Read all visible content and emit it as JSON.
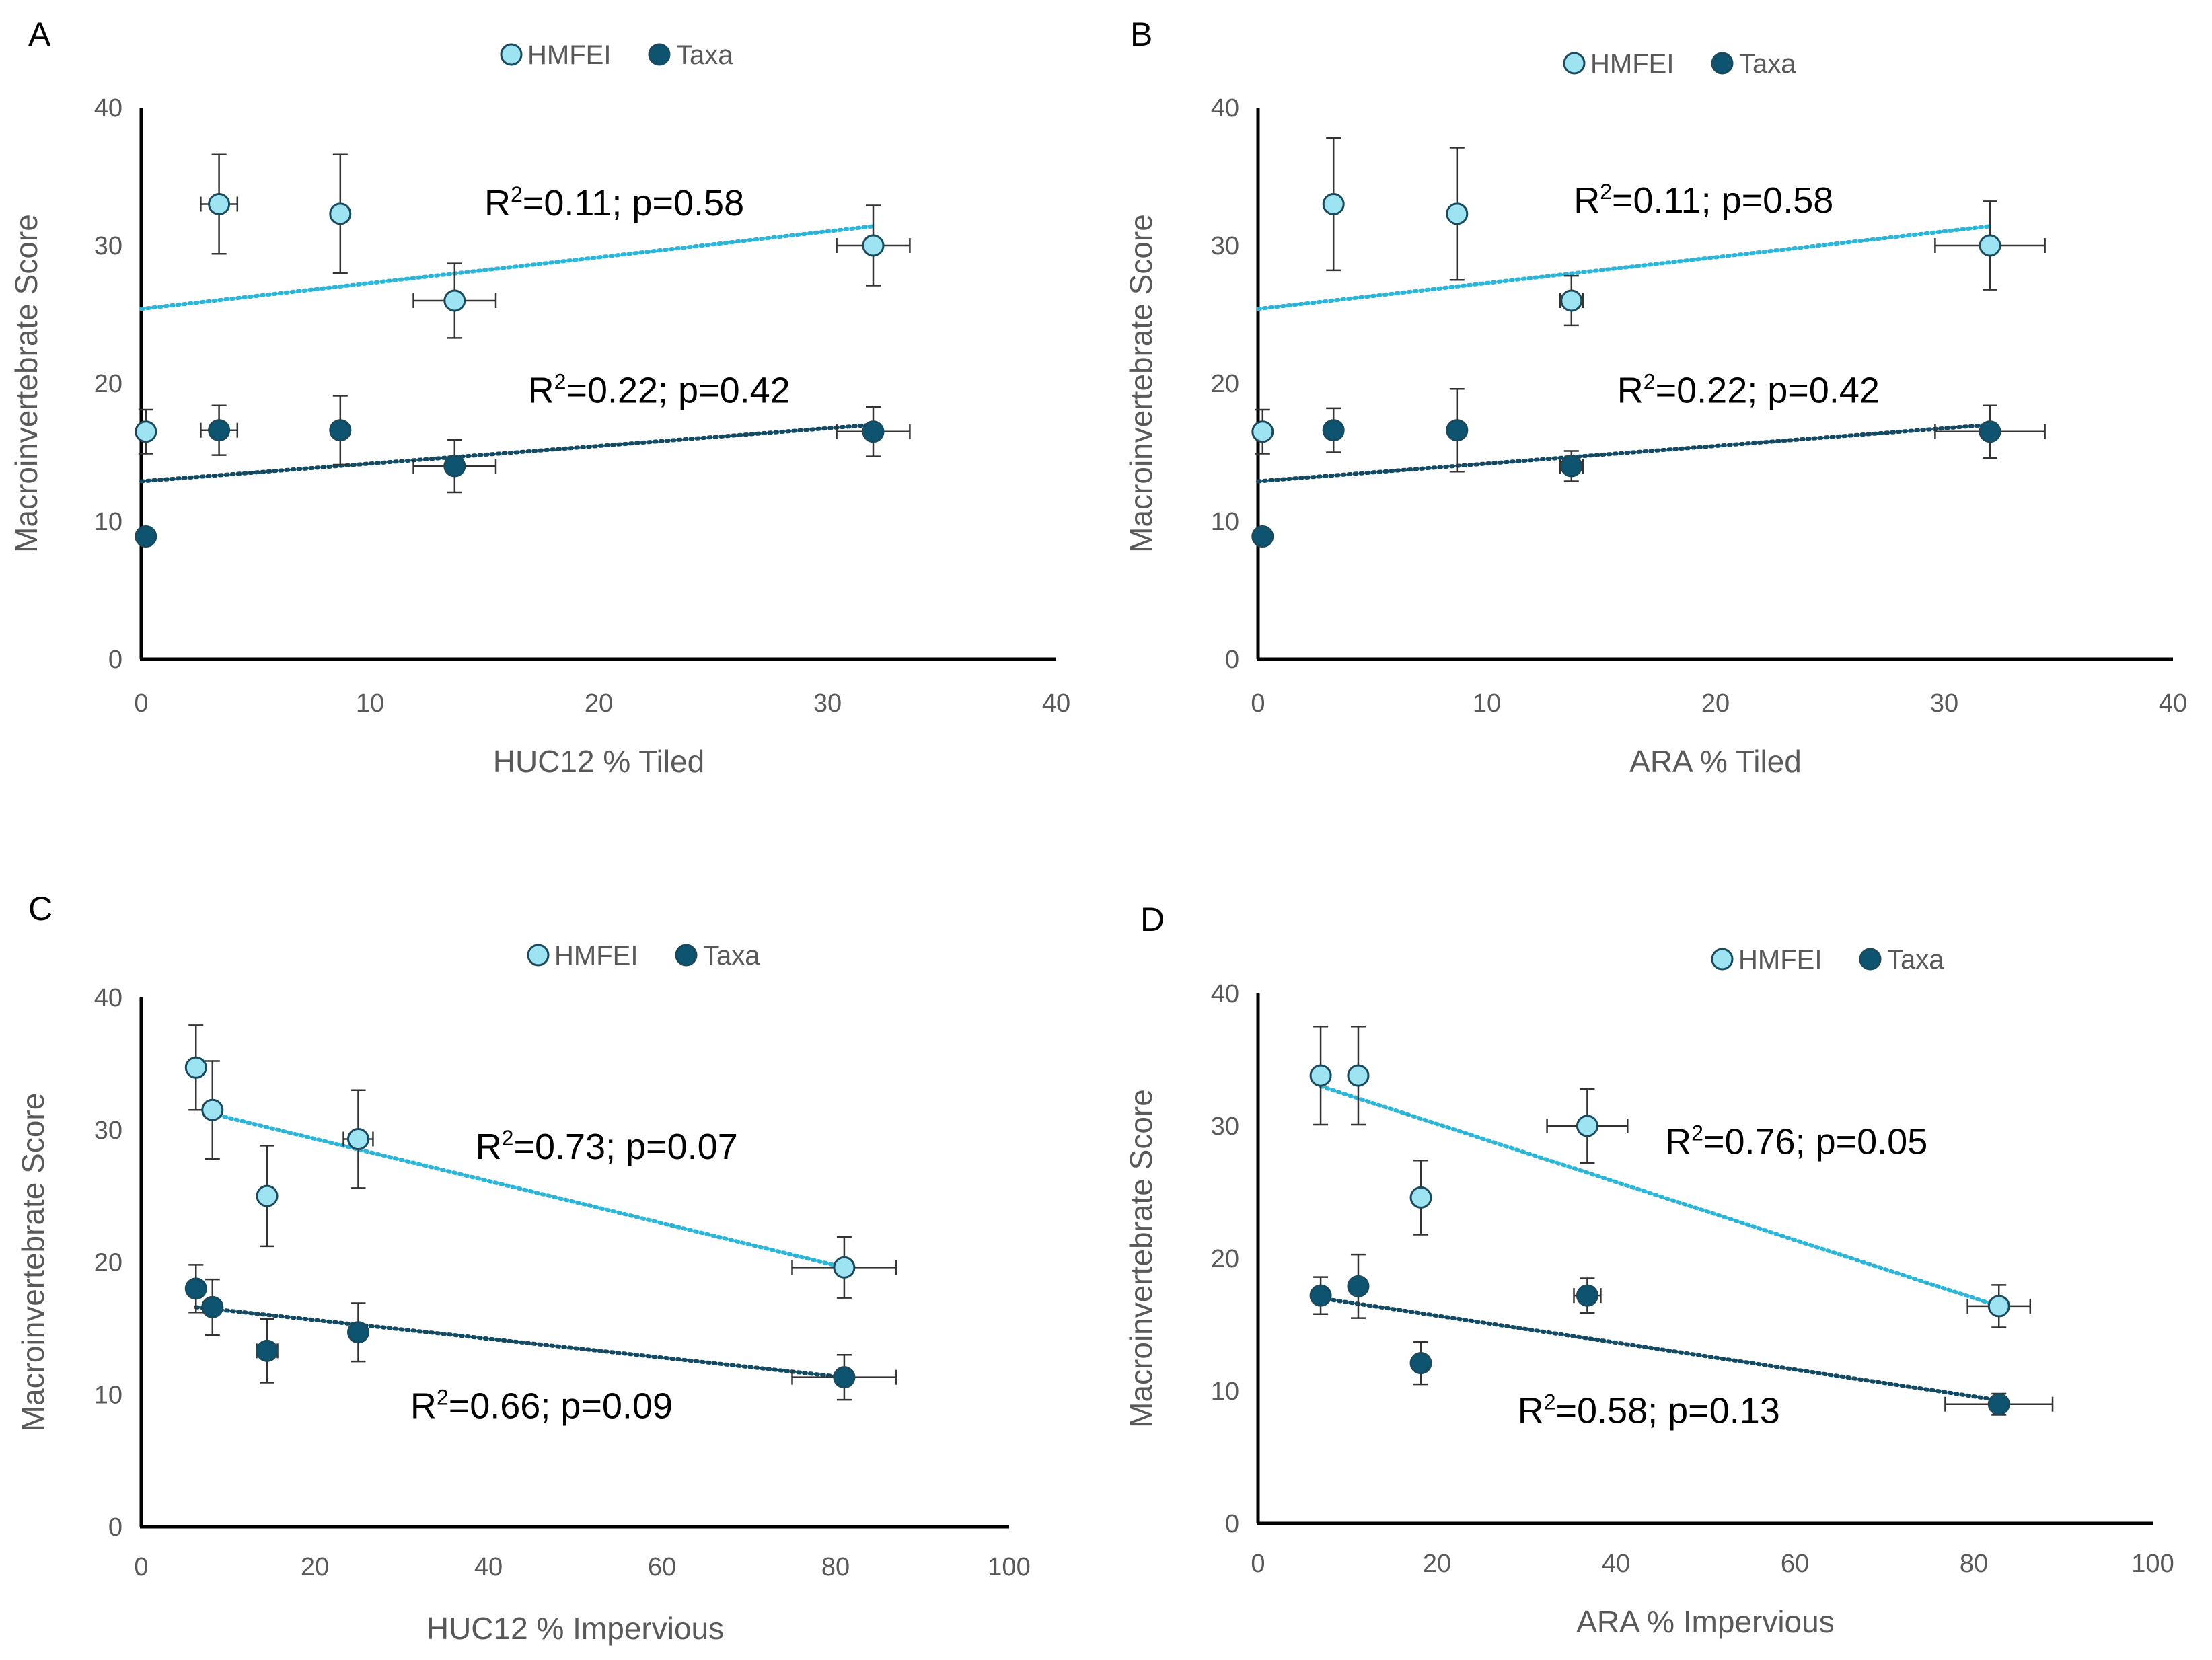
{
  "figure": {
    "legend": {
      "hmfei_label": "HMFEI",
      "taxa_label": "Taxa"
    }
  },
  "colors": {
    "hmfei_fill": "#9ee3f2",
    "hmfei_trend": "#2bb5d8",
    "taxa_fill": "#0e5470",
    "taxa_trend": "#134a63",
    "marker_edge": "#1a4a5e",
    "axis": "#000000",
    "error_bar": "#333333"
  },
  "chart_data": [
    {
      "panel": "A",
      "type": "scatter",
      "xlabel": "HUC12 % Tiled",
      "ylabel": "Macroinvertebrate Score",
      "xlim": [
        0,
        40
      ],
      "ylim": [
        0,
        40
      ],
      "xticks": [
        "0",
        "10",
        "20",
        "30",
        "40"
      ],
      "yticks": [
        "0",
        "10",
        "20",
        "30",
        "40"
      ],
      "series": [
        {
          "name": "HMFEI",
          "key": "hmfei",
          "points": [
            {
              "x": 0.2,
              "y": 16.5,
              "yerr": 1.6,
              "xerr": 0
            },
            {
              "x": 3.4,
              "y": 33.0,
              "yerr": 3.6,
              "xerr": 0.8
            },
            {
              "x": 8.7,
              "y": 32.3,
              "yerr": 4.3,
              "xerr": 0
            },
            {
              "x": 13.7,
              "y": 26.0,
              "yerr": 2.7,
              "xerr": 1.8
            },
            {
              "x": 32.0,
              "y": 30.0,
              "yerr": 2.9,
              "xerr": 1.6
            }
          ],
          "trend": {
            "x0": 0,
            "y0": 25.4,
            "x1": 32,
            "y1": 31.4
          },
          "annotation": "R²=0.11; p=0.58",
          "annotation_at": {
            "x": 15,
            "y": 32.2
          }
        },
        {
          "name": "Taxa",
          "key": "taxa",
          "points": [
            {
              "x": 0.2,
              "y": 8.9,
              "yerr": 0,
              "xerr": 0
            },
            {
              "x": 3.4,
              "y": 16.6,
              "yerr": 1.8,
              "xerr": 0.8
            },
            {
              "x": 8.7,
              "y": 16.6,
              "yerr": 2.5,
              "xerr": 0
            },
            {
              "x": 13.7,
              "y": 14.0,
              "yerr": 1.9,
              "xerr": 1.8
            },
            {
              "x": 32.0,
              "y": 16.5,
              "yerr": 1.8,
              "xerr": 1.6
            }
          ],
          "trend": {
            "x0": 0,
            "y0": 12.9,
            "x1": 32,
            "y1": 17.0
          },
          "annotation": "R²=0.22; p=0.42",
          "annotation_at": {
            "x": 16.9,
            "y": 18.6
          }
        }
      ]
    },
    {
      "panel": "B",
      "type": "scatter",
      "xlabel": "ARA % Tiled",
      "ylabel": "Macroinvertebrate Score",
      "xlim": [
        0,
        40
      ],
      "ylim": [
        0,
        40
      ],
      "xticks": [
        "0",
        "10",
        "20",
        "30",
        "40"
      ],
      "yticks": [
        "0",
        "10",
        "20",
        "30",
        "40"
      ],
      "series": [
        {
          "name": "HMFEI",
          "key": "hmfei",
          "points": [
            {
              "x": 0.2,
              "y": 16.5,
              "yerr": 1.6,
              "xerr": 0
            },
            {
              "x": 3.3,
              "y": 33.0,
              "yerr": 4.8,
              "xerr": 0
            },
            {
              "x": 8.7,
              "y": 32.3,
              "yerr": 4.8,
              "xerr": 0
            },
            {
              "x": 13.7,
              "y": 26.0,
              "yerr": 1.8,
              "xerr": 0.5
            },
            {
              "x": 32.0,
              "y": 30.0,
              "yerr": 3.2,
              "xerr": 2.4
            }
          ],
          "trend": {
            "x0": 0,
            "y0": 25.4,
            "x1": 32,
            "y1": 31.4
          },
          "annotation": "R²=0.11; p=0.58",
          "annotation_at": {
            "x": 13.8,
            "y": 32.4
          }
        },
        {
          "name": "Taxa",
          "key": "taxa",
          "points": [
            {
              "x": 0.2,
              "y": 8.9,
              "yerr": 0,
              "xerr": 0
            },
            {
              "x": 3.3,
              "y": 16.6,
              "yerr": 1.6,
              "xerr": 0
            },
            {
              "x": 8.7,
              "y": 16.6,
              "yerr": 3.0,
              "xerr": 0
            },
            {
              "x": 13.7,
              "y": 14.0,
              "yerr": 1.1,
              "xerr": 0.5
            },
            {
              "x": 32.0,
              "y": 16.5,
              "yerr": 1.9,
              "xerr": 2.4
            }
          ],
          "trend": {
            "x0": 0,
            "y0": 12.9,
            "x1": 32,
            "y1": 17.0
          },
          "annotation": "R²=0.22; p=0.42",
          "annotation_at": {
            "x": 15.7,
            "y": 18.6
          }
        }
      ]
    },
    {
      "panel": "C",
      "type": "scatter",
      "xlabel": "HUC12 % Impervious",
      "ylabel": "Macroinvertebrate Score",
      "xlim": [
        0,
        100
      ],
      "ylim": [
        0,
        40
      ],
      "xticks": [
        "0",
        "20",
        "40",
        "60",
        "80",
        "100"
      ],
      "yticks": [
        "0",
        "10",
        "20",
        "30",
        "40"
      ],
      "series": [
        {
          "name": "HMFEI",
          "key": "hmfei",
          "points": [
            {
              "x": 6.3,
              "y": 34.7,
              "yerr": 3.2,
              "xerr": 0
            },
            {
              "x": 8.2,
              "y": 31.5,
              "yerr": 3.7,
              "xerr": 0
            },
            {
              "x": 14.5,
              "y": 25.0,
              "yerr": 3.8,
              "xerr": 0.8
            },
            {
              "x": 25.0,
              "y": 29.3,
              "yerr": 3.7,
              "xerr": 1.7
            },
            {
              "x": 81.0,
              "y": 19.6,
              "yerr": 2.3,
              "xerr": 6.0
            }
          ],
          "trend": {
            "x0": 8.2,
            "y0": 31.2,
            "x1": 81,
            "y1": 19.6
          },
          "annotation": "R²=0.73; p=0.07",
          "annotation_at": {
            "x": 38.5,
            "y": 27.8
          }
        },
        {
          "name": "Taxa",
          "key": "taxa",
          "points": [
            {
              "x": 6.3,
              "y": 18.0,
              "yerr": 1.8,
              "xerr": 0
            },
            {
              "x": 8.2,
              "y": 16.6,
              "yerr": 2.1,
              "xerr": 0
            },
            {
              "x": 14.5,
              "y": 13.3,
              "yerr": 2.4,
              "xerr": 1.2
            },
            {
              "x": 25.0,
              "y": 14.7,
              "yerr": 2.2,
              "xerr": 0
            },
            {
              "x": 81.0,
              "y": 11.3,
              "yerr": 1.7,
              "xerr": 6.0
            }
          ],
          "trend": {
            "x0": 6.3,
            "y0": 16.6,
            "x1": 81,
            "y1": 11.3
          },
          "annotation": "R²=0.66; p=0.09",
          "annotation_at": {
            "x": 31.0,
            "y": 8.2
          }
        }
      ]
    },
    {
      "panel": "D",
      "type": "scatter",
      "xlabel": "ARA % Impervious",
      "ylabel": "Macroinvertebrate Score",
      "xlim": [
        0,
        100
      ],
      "ylim": [
        0,
        40
      ],
      "xticks": [
        "0",
        "20",
        "40",
        "60",
        "80",
        "100"
      ],
      "yticks": [
        "0",
        "10",
        "20",
        "30",
        "40"
      ],
      "series": [
        {
          "name": "HMFEI",
          "key": "hmfei",
          "points": [
            {
              "x": 7.0,
              "y": 33.8,
              "yerr": 3.7,
              "xerr": 0
            },
            {
              "x": 11.2,
              "y": 33.8,
              "yerr": 3.7,
              "xerr": 0
            },
            {
              "x": 18.2,
              "y": 24.6,
              "yerr": 2.8,
              "xerr": 0
            },
            {
              "x": 36.8,
              "y": 30.0,
              "yerr": 2.8,
              "xerr": 4.5
            },
            {
              "x": 82.8,
              "y": 16.4,
              "yerr": 1.6,
              "xerr": 3.5
            }
          ],
          "trend": {
            "x0": 7,
            "y0": 33.0,
            "x1": 82.8,
            "y1": 16.4
          },
          "annotation": "R²=0.76; p=0.05",
          "annotation_at": {
            "x": 45.5,
            "y": 27.9
          }
        },
        {
          "name": "Taxa",
          "key": "taxa",
          "points": [
            {
              "x": 7.0,
              "y": 17.2,
              "yerr": 1.4,
              "xerr": 0
            },
            {
              "x": 11.2,
              "y": 17.9,
              "yerr": 2.4,
              "xerr": 0
            },
            {
              "x": 18.2,
              "y": 12.1,
              "yerr": 1.6,
              "xerr": 0.8
            },
            {
              "x": 36.8,
              "y": 17.2,
              "yerr": 1.3,
              "xerr": 1.5
            },
            {
              "x": 82.8,
              "y": 9.0,
              "yerr": 0.8,
              "xerr": 6.0
            }
          ],
          "trend": {
            "x0": 7,
            "y0": 17.0,
            "x1": 82.8,
            "y1": 9.3
          },
          "annotation": "R²=0.58; p=0.13",
          "annotation_at": {
            "x": 29.0,
            "y": 7.6
          }
        }
      ]
    }
  ]
}
